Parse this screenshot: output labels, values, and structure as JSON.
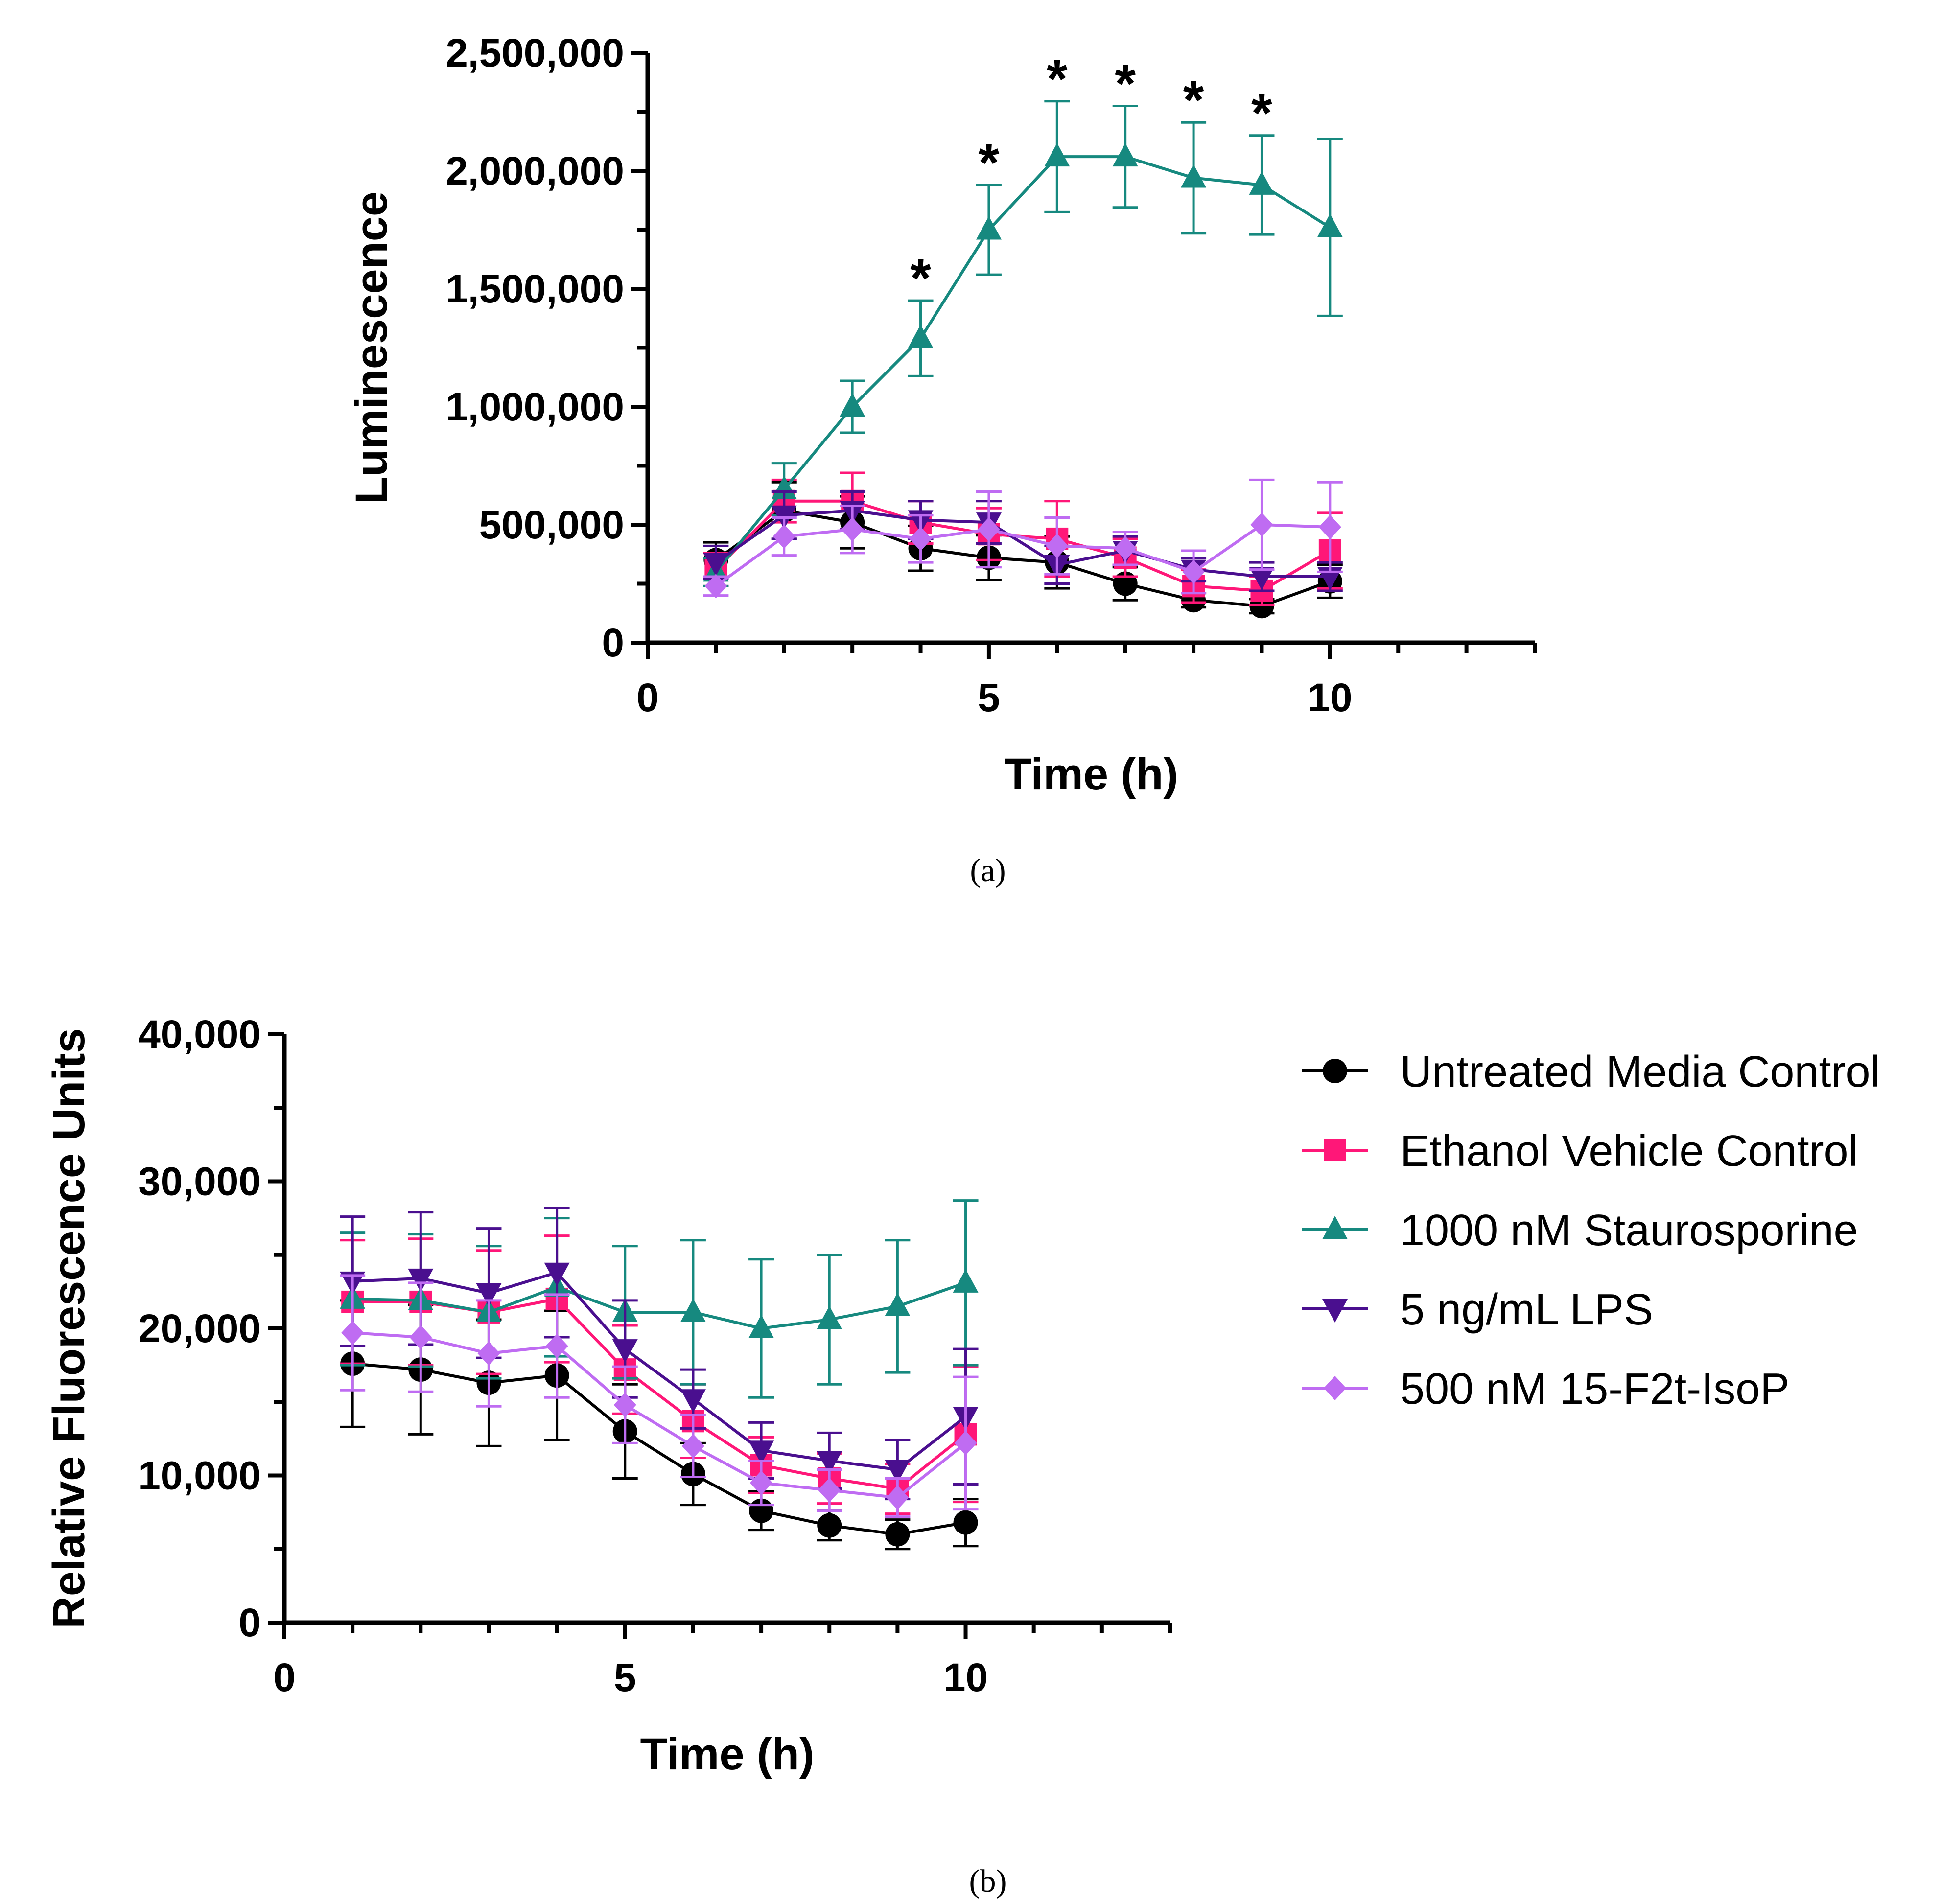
{
  "legend": [
    {
      "key": "untreated",
      "label": "Untreated Media Control",
      "color": "#000000",
      "marker": "circle"
    },
    {
      "key": "ethanol",
      "label": "Ethanol Vehicle Control",
      "color": "#ff1778",
      "marker": "square"
    },
    {
      "key": "stauro",
      "label": "1000 nM Staurosporine",
      "color": "#16897f",
      "marker": "triangle-up"
    },
    {
      "key": "lps",
      "label": "5 ng/mL LPS",
      "color": "#4a0f8f",
      "marker": "triangle-down"
    },
    {
      "key": "isop",
      "label": "500 nM 15-F2t-IsoP",
      "color": "#bf6cf2",
      "marker": "diamond"
    }
  ],
  "chart_data": [
    {
      "panel_label": "(a)",
      "type": "line",
      "xlabel": "Time (h)",
      "ylabel": "Luminescence",
      "xlim": [
        0,
        13
      ],
      "ylim": [
        0,
        2500000
      ],
      "x_ticks": [
        0,
        5,
        10
      ],
      "x_tick_labels": [
        "0",
        "5",
        "10"
      ],
      "y_ticks": [
        0,
        500000,
        1000000,
        1500000,
        2000000,
        2500000
      ],
      "y_tick_labels": [
        "0",
        "500,000",
        "1,000,000",
        "1,500,000",
        "2,000,000",
        "2,500,000"
      ],
      "x": [
        1,
        2,
        3,
        4,
        5,
        6,
        7,
        8,
        9,
        10
      ],
      "significance": {
        "symbol": "*",
        "x": [
          4,
          5,
          6,
          7,
          8,
          9
        ]
      },
      "series": [
        {
          "key": "untreated",
          "values": [
            350000,
            560000,
            510000,
            400000,
            360000,
            340000,
            250000,
            180000,
            155000,
            260000
          ],
          "errors": [
            75000,
            120000,
            110000,
            95000,
            95000,
            110000,
            70000,
            30000,
            30000,
            70000
          ]
        },
        {
          "key": "ethanol",
          "values": [
            310000,
            600000,
            600000,
            510000,
            460000,
            440000,
            360000,
            240000,
            220000,
            390000
          ],
          "errors": [
            70000,
            90000,
            120000,
            90000,
            110000,
            160000,
            80000,
            70000,
            60000,
            160000
          ]
        },
        {
          "key": "stauro",
          "values": [
            300000,
            650000,
            1000000,
            1290000,
            1750000,
            2060000,
            2060000,
            1970000,
            1940000,
            1760000
          ],
          "errors": [
            60000,
            110000,
            110000,
            160000,
            190000,
            235000,
            215000,
            235000,
            210000,
            375000
          ]
        },
        {
          "key": "lps",
          "values": [
            340000,
            540000,
            560000,
            520000,
            510000,
            330000,
            390000,
            310000,
            280000,
            280000
          ],
          "errors": [
            70000,
            100000,
            80000,
            80000,
            90000,
            80000,
            60000,
            50000,
            60000,
            60000
          ]
        },
        {
          "key": "isop",
          "values": [
            240000,
            450000,
            480000,
            440000,
            480000,
            410000,
            400000,
            300000,
            500000,
            490000
          ],
          "errors": [
            40000,
            80000,
            100000,
            100000,
            160000,
            120000,
            70000,
            90000,
            190000,
            190000
          ]
        }
      ]
    },
    {
      "panel_label": "(b)",
      "type": "line",
      "xlabel": "Time (h)",
      "ylabel": "Relative Fluorescence Units",
      "xlim": [
        0,
        13
      ],
      "ylim": [
        0,
        40000
      ],
      "x_ticks": [
        0,
        5,
        10
      ],
      "x_tick_labels": [
        "0",
        "5",
        "10"
      ],
      "y_ticks": [
        0,
        10000,
        20000,
        30000,
        40000
      ],
      "y_tick_labels": [
        "0",
        "10,000",
        "20,000",
        "30,000",
        "40,000"
      ],
      "x": [
        1,
        2,
        3,
        4,
        5,
        6,
        7,
        8,
        9,
        10
      ],
      "series": [
        {
          "key": "untreated",
          "values": [
            17600,
            17200,
            16300,
            16800,
            13000,
            10100,
            7600,
            6600,
            6000,
            6800
          ],
          "errors": [
            4300,
            4400,
            4300,
            4400,
            3200,
            2100,
            1300,
            1000,
            1000,
            1600
          ]
        },
        {
          "key": "ethanol",
          "values": [
            21800,
            21800,
            21100,
            22000,
            17200,
            13700,
            10700,
            9800,
            9100,
            12800
          ],
          "errors": [
            4200,
            4300,
            4200,
            4300,
            3000,
            2500,
            1900,
            1700,
            1700,
            4600
          ]
        },
        {
          "key": "stauro",
          "values": [
            22000,
            21900,
            21100,
            22800,
            21100,
            21100,
            20000,
            20600,
            21500,
            23100
          ],
          "errors": [
            4500,
            4500,
            4500,
            4700,
            4500,
            4900,
            4700,
            4400,
            4500,
            5600
          ]
        },
        {
          "key": "lps",
          "values": [
            23200,
            23400,
            22400,
            23800,
            18600,
            15200,
            11700,
            11000,
            10400,
            14000
          ],
          "errors": [
            4400,
            4500,
            4400,
            4400,
            3300,
            2000,
            1900,
            1900,
            2000,
            4600
          ]
        },
        {
          "key": "isop",
          "values": [
            19700,
            19400,
            18300,
            18800,
            14800,
            12000,
            9500,
            9000,
            8500,
            12200
          ],
          "errors": [
            3900,
            3700,
            3600,
            3500,
            2600,
            2100,
            1500,
            1400,
            1300,
            4500
          ]
        }
      ]
    }
  ]
}
